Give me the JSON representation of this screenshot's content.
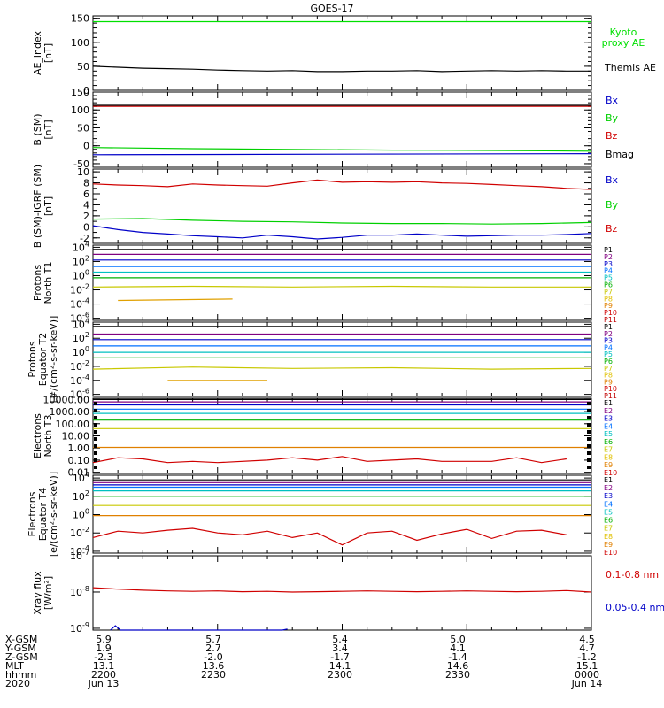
{
  "title": "GOES-17",
  "chart_data": [
    {
      "type": "line",
      "ylabel": "AE_index\n[nT]",
      "yticks": [
        "0",
        "50",
        "100",
        "150"
      ],
      "ylim": [
        0,
        155
      ],
      "series": [
        {
          "name": "Kyoto\nproxy AE",
          "color": "#00e000",
          "x": [
            0,
            1
          ],
          "values": [
            143,
            143
          ]
        },
        {
          "name": "Themis AE",
          "color": "#000000",
          "x": [
            0,
            0.05,
            0.1,
            0.15,
            0.2,
            0.25,
            0.3,
            0.35,
            0.4,
            0.45,
            0.5,
            0.55,
            0.6,
            0.65,
            0.7,
            0.75,
            0.8,
            0.85,
            0.9,
            0.95,
            1
          ],
          "values": [
            50,
            48,
            46,
            45,
            44,
            42,
            41,
            40,
            41,
            39,
            39,
            40,
            40,
            41,
            39,
            40,
            41,
            40,
            41,
            40,
            40
          ]
        }
      ]
    },
    {
      "type": "line",
      "ylabel": "B (SM)\n[nT]",
      "yticks": [
        "-50",
        "0",
        "50",
        "100",
        "150"
      ],
      "ylim": [
        -60,
        150
      ],
      "series": [
        {
          "name": "Bx",
          "color": "#0000c8",
          "x": [
            0,
            1
          ],
          "values": [
            -25,
            -22
          ]
        },
        {
          "name": "By",
          "color": "#00d000",
          "x": [
            0,
            0.2,
            0.4,
            0.6,
            0.8,
            1
          ],
          "values": [
            -5,
            -8,
            -10,
            -12,
            -13,
            -15
          ]
        },
        {
          "name": "Bz",
          "color": "#d00000",
          "x": [
            0,
            1
          ],
          "values": [
            110,
            110
          ]
        },
        {
          "name": "Bmag",
          "color": "#000000",
          "x": [
            0,
            1
          ],
          "values": [
            113,
            113
          ]
        }
      ]
    },
    {
      "type": "line",
      "ylabel": "B (SM)-IGRF (SM)\n[nT]",
      "yticks": [
        "-2",
        "0",
        "2",
        "4",
        "6",
        "8",
        "10"
      ],
      "ylim": [
        -3,
        10.5
      ],
      "series": [
        {
          "name": "Bx",
          "color": "#0000c8",
          "x": [
            0,
            0.05,
            0.1,
            0.15,
            0.2,
            0.25,
            0.3,
            0.35,
            0.4,
            0.45,
            0.5,
            0.55,
            0.6,
            0.65,
            0.7,
            0.75,
            0.8,
            0.85,
            0.9,
            0.95,
            1
          ],
          "values": [
            0.2,
            -0.5,
            -1.0,
            -1.3,
            -1.6,
            -1.8,
            -2.0,
            -1.5,
            -1.8,
            -2.2,
            -1.9,
            -1.5,
            -1.5,
            -1.3,
            -1.5,
            -1.7,
            -1.6,
            -1.5,
            -1.5,
            -1.4,
            -1.2
          ]
        },
        {
          "name": "By",
          "color": "#00d000",
          "x": [
            0,
            0.1,
            0.2,
            0.3,
            0.4,
            0.5,
            0.6,
            0.7,
            0.8,
            0.9,
            1
          ],
          "values": [
            1.4,
            1.5,
            1.2,
            1.0,
            0.9,
            0.7,
            0.6,
            0.6,
            0.5,
            0.6,
            0.8
          ]
        },
        {
          "name": "Bz",
          "color": "#d00000",
          "x": [
            0,
            0.05,
            0.1,
            0.15,
            0.2,
            0.25,
            0.3,
            0.35,
            0.4,
            0.45,
            0.5,
            0.55,
            0.6,
            0.65,
            0.7,
            0.75,
            0.8,
            0.85,
            0.9,
            0.95,
            1
          ],
          "values": [
            7.8,
            7.6,
            7.5,
            7.3,
            7.8,
            7.6,
            7.5,
            7.4,
            8.0,
            8.5,
            8.1,
            8.2,
            8.1,
            8.2,
            8.0,
            7.9,
            7.7,
            7.5,
            7.3,
            7.0,
            6.8
          ]
        }
      ]
    },
    {
      "type": "line",
      "ylabel": "Protons\nNorth T1",
      "yticks": [
        "10^-6",
        "10^-4",
        "10^-2",
        "10^0",
        "10^2",
        "10^4"
      ],
      "ylim": [
        -6.3,
        4.3
      ],
      "log": true,
      "legend": [
        "P1",
        "P2",
        "P3",
        "P4",
        "P5",
        "P6",
        "P7",
        "P8",
        "P9",
        "P10",
        "P11"
      ],
      "series": [
        {
          "name": "P1",
          "color": "#000000",
          "x": [
            0,
            1
          ],
          "values": [
            3.7,
            3.7
          ]
        },
        {
          "name": "P2",
          "color": "#800080",
          "x": [
            0,
            1
          ],
          "values": [
            3.0,
            3.0
          ]
        },
        {
          "name": "P3",
          "color": "#0000c8",
          "x": [
            0,
            1
          ],
          "values": [
            2.2,
            2.2
          ]
        },
        {
          "name": "P4",
          "color": "#0070ff",
          "x": [
            0,
            1
          ],
          "values": [
            1.3,
            1.3
          ]
        },
        {
          "name": "P5",
          "color": "#00c0c0",
          "x": [
            0,
            1
          ],
          "values": [
            0.5,
            0.5
          ]
        },
        {
          "name": "P6",
          "color": "#00b000",
          "x": [
            0,
            1
          ],
          "values": [
            -0.3,
            -0.3
          ]
        },
        {
          "name": "P7",
          "color": "#c8c800",
          "x": [
            0,
            0.2,
            0.4,
            0.6,
            0.8,
            1
          ],
          "values": [
            -1.6,
            -1.5,
            -1.6,
            -1.5,
            -1.6,
            -1.6
          ]
        },
        {
          "name": "P9",
          "color": "#e0a000",
          "x": [
            0.05,
            0.28
          ],
          "values": [
            -3.5,
            -3.3
          ]
        }
      ]
    },
    {
      "type": "line",
      "ylabel": "Protons\nEquator T2\n[#/(cm²-s-sr-keV)]",
      "yticks": [
        "10^-6",
        "10^-4",
        "10^-2",
        "10^0",
        "10^2",
        "10^4"
      ],
      "ylim": [
        -6.3,
        4.3
      ],
      "log": true,
      "legend": [
        "P1",
        "P2",
        "P3",
        "P4",
        "P5",
        "P6",
        "P7",
        "P8",
        "P9",
        "P10",
        "P11"
      ],
      "series": [
        {
          "name": "P1",
          "color": "#000000",
          "x": [
            0,
            1
          ],
          "values": [
            3.7,
            3.7
          ]
        },
        {
          "name": "P2",
          "color": "#800080",
          "x": [
            0,
            1
          ],
          "values": [
            2.6,
            2.6
          ]
        },
        {
          "name": "P3",
          "color": "#0000c8",
          "x": [
            0,
            1
          ],
          "values": [
            1.8,
            1.8
          ]
        },
        {
          "name": "P4",
          "color": "#0070ff",
          "x": [
            0,
            1
          ],
          "values": [
            0.9,
            0.9
          ]
        },
        {
          "name": "P5",
          "color": "#00c0c0",
          "x": [
            0,
            1
          ],
          "values": [
            0.0,
            0.0
          ]
        },
        {
          "name": "P6",
          "color": "#00b000",
          "x": [
            0,
            1
          ],
          "values": [
            -0.8,
            -0.8
          ]
        },
        {
          "name": "P7",
          "color": "#c8c800",
          "x": [
            0,
            0.2,
            0.4,
            0.6,
            0.8,
            1
          ],
          "values": [
            -2.4,
            -2.1,
            -2.3,
            -2.2,
            -2.4,
            -2.3
          ]
        },
        {
          "name": "P9",
          "color": "#e0a000",
          "x": [
            0.15,
            0.35
          ],
          "values": [
            -4.0,
            -4.0
          ]
        }
      ]
    },
    {
      "type": "line",
      "ylabel": "Electrons\nNorth T3",
      "yticks": [
        "0.01",
        "0.10",
        "1.00",
        "10.00",
        "100.00",
        "1000.00",
        "10000.00"
      ],
      "ylim": [
        -2.1,
        4.1
      ],
      "log": true,
      "legend": [
        "E1",
        "E2",
        "E3",
        "E4",
        "E5",
        "E6",
        "E7",
        "E8",
        "E9",
        "E10"
      ],
      "series": [
        {
          "name": "E1",
          "color": "#000000",
          "x": [
            0,
            1
          ],
          "values": [
            4.0,
            4.0
          ]
        },
        {
          "name": "E2",
          "color": "#800080",
          "x": [
            0,
            1
          ],
          "values": [
            3.8,
            3.8
          ]
        },
        {
          "name": "E3",
          "color": "#0000c8",
          "x": [
            0,
            1
          ],
          "values": [
            3.55,
            3.55
          ]
        },
        {
          "name": "E4",
          "color": "#0070ff",
          "x": [
            0,
            1
          ],
          "values": [
            3.2,
            3.2
          ]
        },
        {
          "name": "E5",
          "color": "#00c0c0",
          "x": [
            0,
            1
          ],
          "values": [
            2.85,
            2.85
          ]
        },
        {
          "name": "E6",
          "color": "#00b000",
          "x": [
            0,
            1
          ],
          "values": [
            2.3,
            2.3
          ]
        },
        {
          "name": "E7",
          "color": "#c8c800",
          "x": [
            0,
            1
          ],
          "values": [
            1.6,
            1.6
          ]
        },
        {
          "name": "E8",
          "color": "#e08000",
          "x": [
            0,
            1
          ],
          "values": [
            0.05,
            0.05
          ]
        },
        {
          "name": "E9",
          "color": "#d00000",
          "x": [
            0,
            0.05,
            0.1,
            0.15,
            0.2,
            0.25,
            0.35,
            0.4,
            0.45,
            0.5,
            0.55,
            0.6,
            0.65,
            0.7,
            0.8,
            0.85,
            0.9,
            0.95
          ],
          "values": [
            -1.2,
            -0.8,
            -0.9,
            -1.2,
            -1.1,
            -1.2,
            -1.0,
            -0.8,
            -1.0,
            -0.7,
            -1.1,
            -1.0,
            -0.9,
            -1.1,
            -1.1,
            -0.8,
            -1.2,
            -0.9
          ]
        }
      ]
    },
    {
      "type": "line",
      "ylabel": "Electrons\nEquator T4\n[e/(cm²-s-sr-keV)]",
      "yticks": [
        "10^-4",
        "10^-2",
        "10^0",
        "10^2",
        "10^4"
      ],
      "ylim": [
        -4.2,
        4.3
      ],
      "log": true,
      "legend": [
        "E1",
        "E2",
        "E3",
        "E4",
        "E5",
        "E6",
        "E7",
        "E8",
        "E9",
        "E10"
      ],
      "series": [
        {
          "name": "E1",
          "color": "#000000",
          "x": [
            0,
            1
          ],
          "values": [
            3.8,
            3.8
          ]
        },
        {
          "name": "E2",
          "color": "#800080",
          "x": [
            0,
            1
          ],
          "values": [
            3.5,
            3.5
          ]
        },
        {
          "name": "E3",
          "color": "#0000c8",
          "x": [
            0,
            1
          ],
          "values": [
            3.25,
            3.25
          ]
        },
        {
          "name": "E4",
          "color": "#0070ff",
          "x": [
            0,
            1
          ],
          "values": [
            3.0,
            3.0
          ]
        },
        {
          "name": "E5",
          "color": "#00c0c0",
          "x": [
            0,
            1
          ],
          "values": [
            2.6,
            2.6
          ]
        },
        {
          "name": "E6",
          "color": "#00b000",
          "x": [
            0,
            1
          ],
          "values": [
            2.0,
            2.0
          ]
        },
        {
          "name": "E7",
          "color": "#c8c800",
          "x": [
            0,
            1
          ],
          "values": [
            1.0,
            1.0
          ]
        },
        {
          "name": "E8",
          "color": "#e08000",
          "x": [
            0,
            1
          ],
          "values": [
            -0.1,
            -0.1
          ]
        },
        {
          "name": "E9",
          "color": "#d00000",
          "x": [
            0,
            0.05,
            0.1,
            0.15,
            0.2,
            0.25,
            0.3,
            0.35,
            0.4,
            0.45,
            0.5,
            0.55,
            0.6,
            0.65,
            0.7,
            0.75,
            0.8,
            0.85,
            0.9,
            0.95
          ],
          "values": [
            -2.5,
            -1.8,
            -2.0,
            -1.7,
            -1.5,
            -2.0,
            -2.2,
            -1.8,
            -2.5,
            -2.0,
            -3.3,
            -2.0,
            -1.8,
            -2.8,
            -2.1,
            -1.6,
            -2.6,
            -1.8,
            -1.7,
            -2.2
          ]
        }
      ]
    },
    {
      "type": "line",
      "ylabel": "Xray flux\n[W/m²]",
      "yticks": [
        "10^-9",
        "10^-8",
        "10^-7"
      ],
      "ylim": [
        -9.05,
        -7.0
      ],
      "log": true,
      "series": [
        {
          "name": "0.1-0.8 nm",
          "color": "#d00000",
          "x": [
            0,
            0.05,
            0.1,
            0.15,
            0.2,
            0.25,
            0.3,
            0.35,
            0.4,
            0.45,
            0.5,
            0.55,
            0.6,
            0.65,
            0.7,
            0.75,
            0.8,
            0.85,
            0.9,
            0.95,
            1
          ],
          "values": [
            -7.88,
            -7.92,
            -7.95,
            -7.97,
            -7.98,
            -7.97,
            -7.99,
            -7.98,
            -8.0,
            -7.99,
            -7.98,
            -7.97,
            -7.98,
            -7.99,
            -7.98,
            -7.97,
            -7.98,
            -7.99,
            -7.98,
            -7.96,
            -8.0
          ]
        },
        {
          "name": "0.05-0.4 nm",
          "color": "#0000c8",
          "x": [
            0.035,
            0.045,
            0.055,
            0.38,
            0.39
          ],
          "values": [
            -9.05,
            -8.93,
            -9.05,
            -9.05,
            -9.02
          ]
        }
      ]
    }
  ],
  "ephemeris": {
    "labels": [
      "X-GSM",
      "Y-GSM",
      "Z-GSM",
      "MLT",
      "hhmm",
      "2020"
    ],
    "columns": [
      {
        "values": [
          "5.9",
          "1.9",
          "-2.3",
          "13.1",
          "2200",
          "Jun 13"
        ]
      },
      {
        "values": [
          "5.7",
          "2.7",
          "-2.0",
          "13.6",
          "2230",
          ""
        ]
      },
      {
        "values": [
          "5.4",
          "3.4",
          "-1.7",
          "14.1",
          "2300",
          ""
        ]
      },
      {
        "values": [
          "5.0",
          "4.1",
          "-1.4",
          "14.6",
          "2330",
          ""
        ]
      },
      {
        "values": [
          "4.5",
          "4.7",
          "-1.2",
          "15.1",
          "0000",
          "Jun 14"
        ]
      }
    ]
  }
}
